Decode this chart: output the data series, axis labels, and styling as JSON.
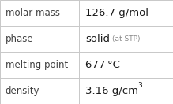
{
  "rows": [
    {
      "label": "molar mass",
      "value": "126.7 g/mol",
      "value_suffix": null,
      "superscript": null
    },
    {
      "label": "phase",
      "value": "solid",
      "value_suffix": "(at STP)",
      "superscript": null
    },
    {
      "label": "melting point",
      "value": "677 °C",
      "value_suffix": null,
      "superscript": null
    },
    {
      "label": "density",
      "value": "3.16 g/cm",
      "value_suffix": null,
      "superscript": "3"
    }
  ],
  "bg_color": "#ffffff",
  "border_color": "#c8c8c8",
  "label_color": "#404040",
  "value_color": "#1a1a1a",
  "suffix_color": "#888888",
  "label_fontsize": 8.5,
  "value_fontsize": 9.5,
  "suffix_fontsize": 6.5,
  "super_fontsize": 6.5,
  "col_split": 0.455
}
